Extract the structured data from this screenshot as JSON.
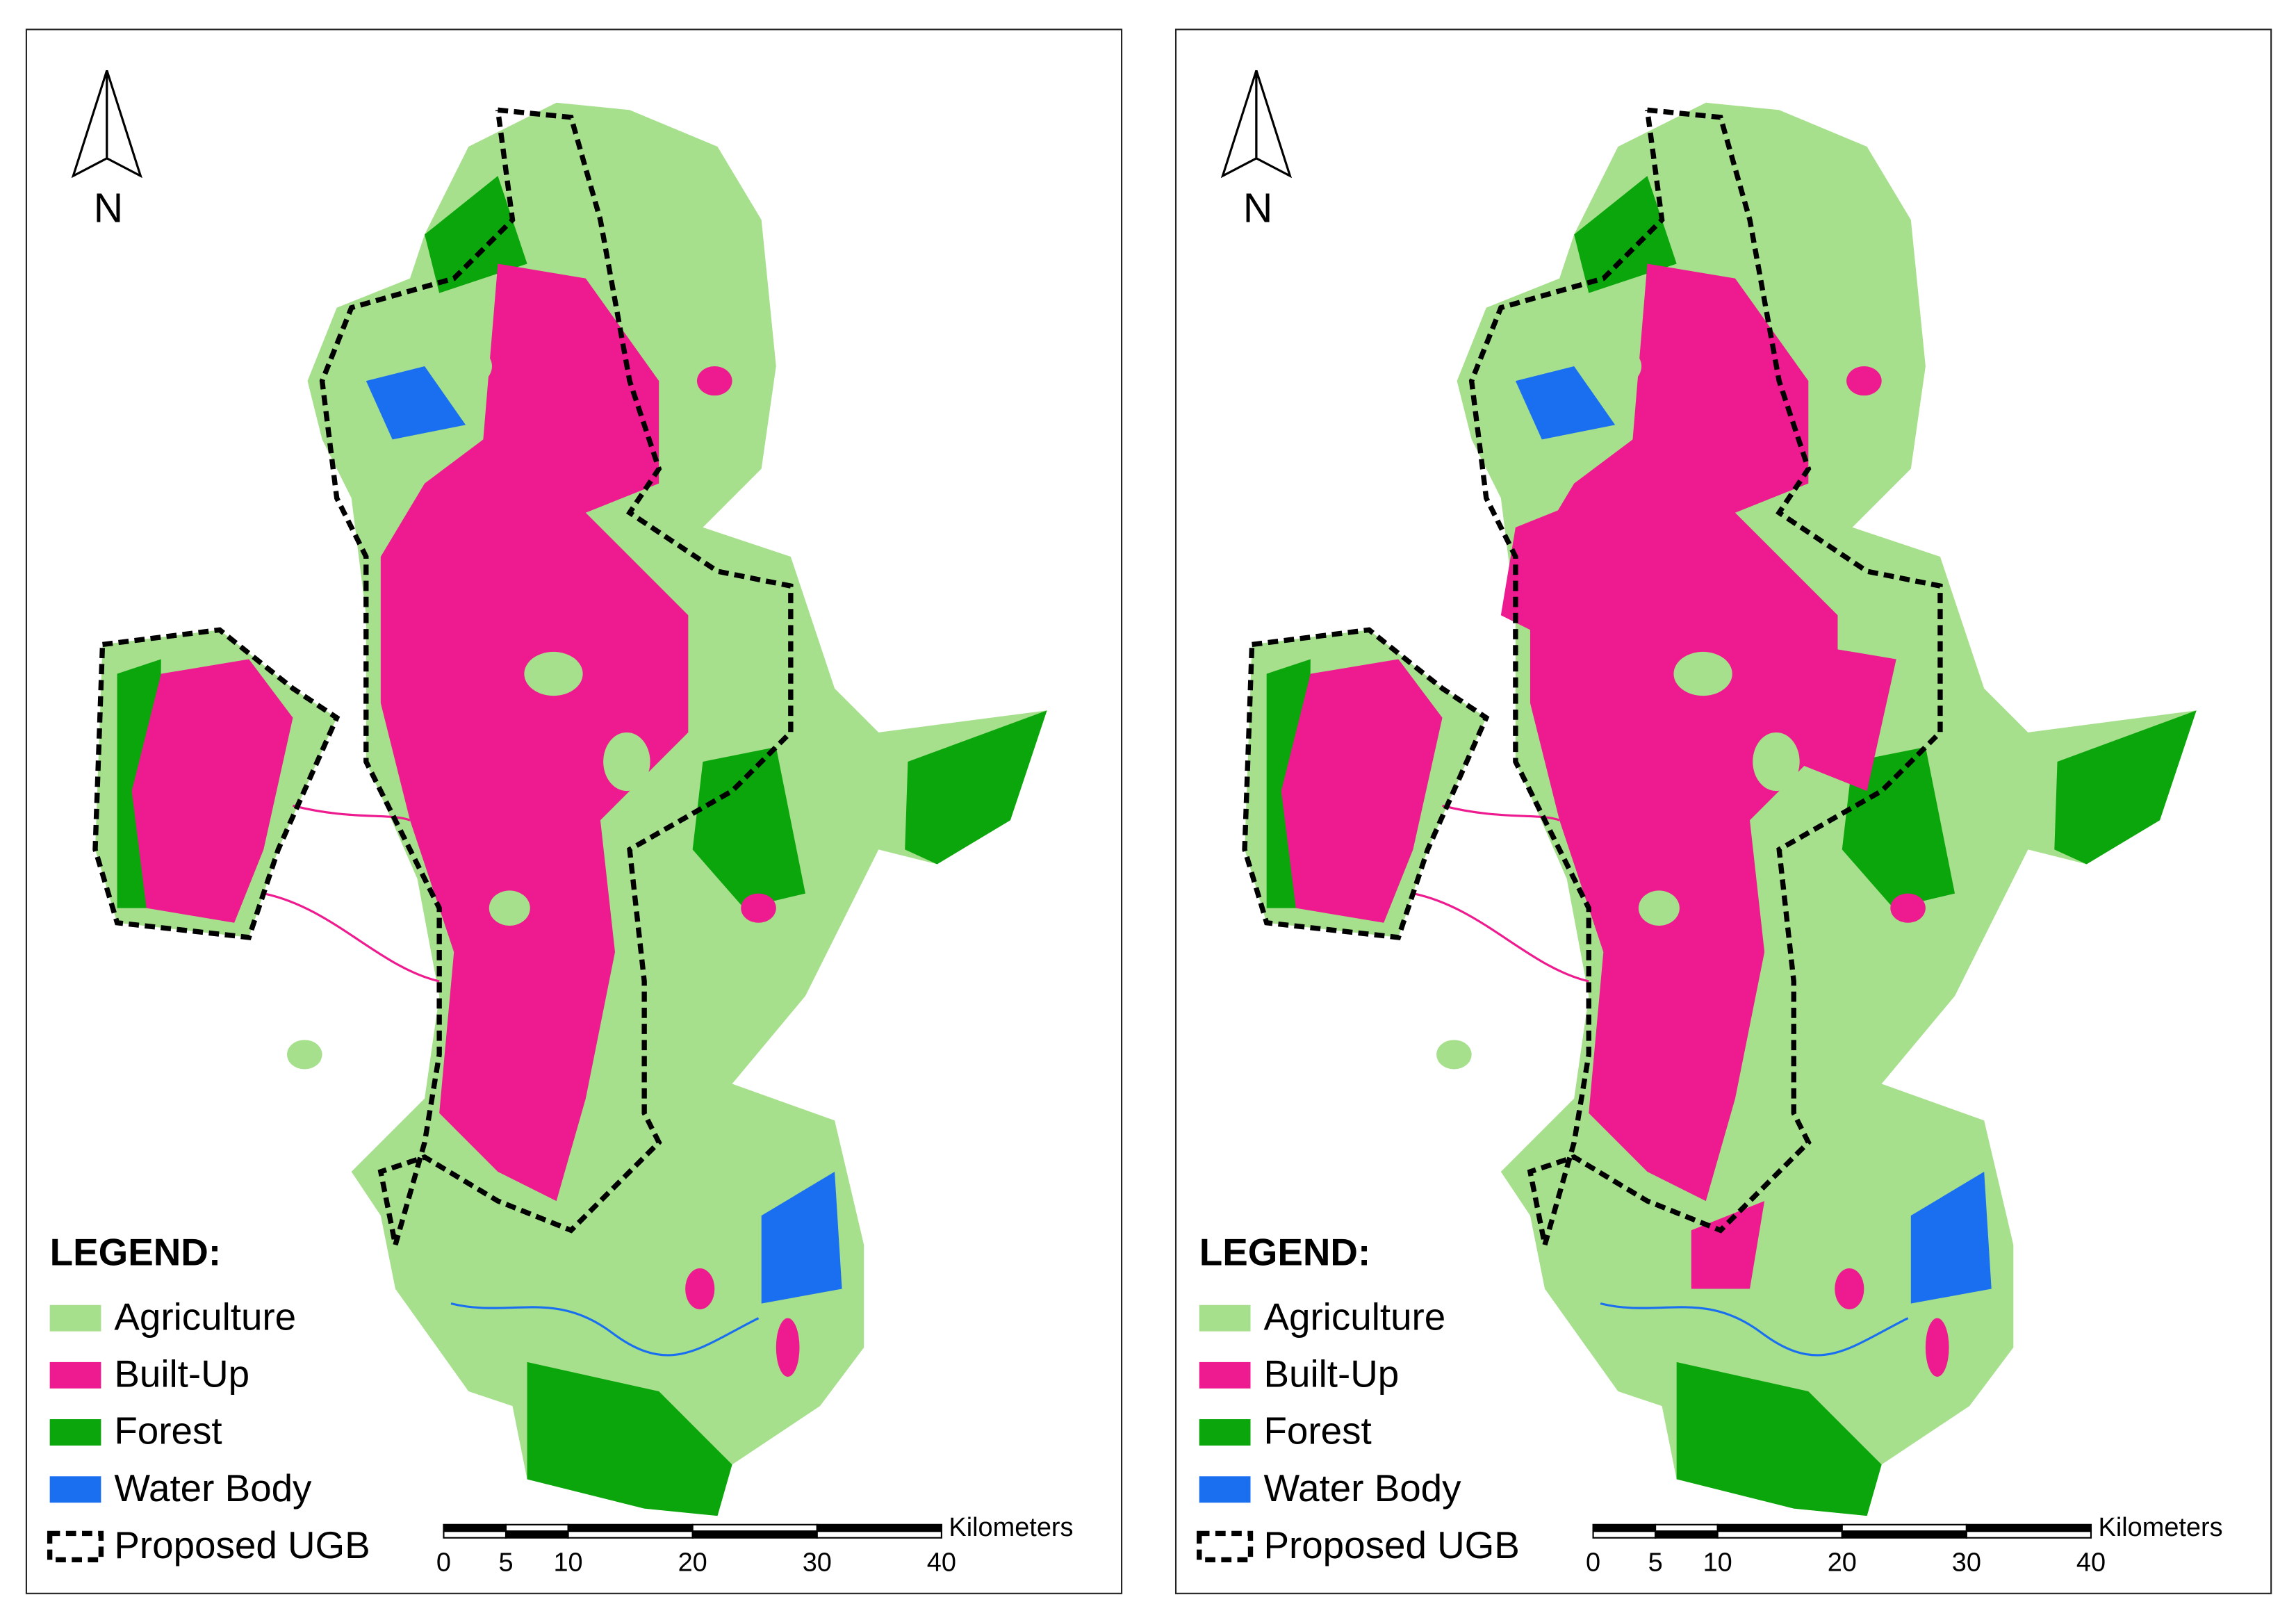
{
  "panels": [
    {
      "north": "N",
      "legend": {
        "title": "LEGEND:",
        "items": [
          {
            "label": "Agriculture",
            "color": "#a6e08c"
          },
          {
            "label": "Built-Up",
            "color": "#ee1a8f"
          },
          {
            "label": "Forest",
            "color": "#0ba50c"
          },
          {
            "label": "Water Body",
            "color": "#1a6ff0"
          },
          {
            "label": "Proposed UGB",
            "color": "#000000",
            "line_style": "dashed"
          }
        ]
      },
      "scale_bar": {
        "unit": "Kilometers",
        "ticks": [
          0,
          5,
          10,
          20,
          30,
          40
        ]
      }
    },
    {
      "north": "N",
      "legend": {
        "title": "LEGEND:",
        "items": [
          {
            "label": "Agriculture",
            "color": "#a6e08c"
          },
          {
            "label": "Built-Up",
            "color": "#ee1a8f"
          },
          {
            "label": "Forest",
            "color": "#0ba50c"
          },
          {
            "label": "Water Body",
            "color": "#1a6ff0"
          },
          {
            "label": "Proposed UGB",
            "color": "#000000",
            "line_style": "dashed"
          }
        ]
      },
      "scale_bar": {
        "unit": "Kilometers",
        "ticks": [
          0,
          5,
          10,
          20,
          30,
          40
        ]
      }
    }
  ]
}
